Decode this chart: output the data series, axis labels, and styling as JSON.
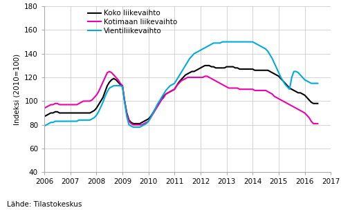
{
  "title": "",
  "ylabel": "Indeksi (2010=100)",
  "source": "Lähde: Tilastokeskus",
  "ylim": [
    40,
    180
  ],
  "yticks": [
    40,
    60,
    80,
    100,
    120,
    140,
    160,
    180
  ],
  "xlim": [
    2006.0,
    2017.0
  ],
  "xticks": [
    2006,
    2007,
    2008,
    2009,
    2010,
    2011,
    2012,
    2013,
    2014,
    2015,
    2016,
    2017
  ],
  "line_koko": {
    "label": "Koko liikevaihto",
    "color": "#000000",
    "linewidth": 1.5,
    "t": [
      2006.0,
      2006.083,
      2006.167,
      2006.25,
      2006.333,
      2006.417,
      2006.5,
      2006.583,
      2006.667,
      2006.75,
      2006.833,
      2006.917,
      2007.0,
      2007.083,
      2007.167,
      2007.25,
      2007.333,
      2007.417,
      2007.5,
      2007.583,
      2007.667,
      2007.75,
      2007.833,
      2007.917,
      2008.0,
      2008.083,
      2008.167,
      2008.25,
      2008.333,
      2008.417,
      2008.5,
      2008.583,
      2008.667,
      2008.75,
      2008.833,
      2008.917,
      2009.0,
      2009.083,
      2009.167,
      2009.25,
      2009.333,
      2009.417,
      2009.5,
      2009.583,
      2009.667,
      2009.75,
      2009.833,
      2009.917,
      2010.0,
      2010.083,
      2010.167,
      2010.25,
      2010.333,
      2010.417,
      2010.5,
      2010.583,
      2010.667,
      2010.75,
      2010.833,
      2010.917,
      2011.0,
      2011.083,
      2011.167,
      2011.25,
      2011.333,
      2011.417,
      2011.5,
      2011.583,
      2011.667,
      2011.75,
      2011.833,
      2011.917,
      2012.0,
      2012.083,
      2012.167,
      2012.25,
      2012.333,
      2012.417,
      2012.5,
      2012.583,
      2012.667,
      2012.75,
      2012.833,
      2012.917,
      2013.0,
      2013.083,
      2013.167,
      2013.25,
      2013.333,
      2013.417,
      2013.5,
      2013.583,
      2013.667,
      2013.75,
      2013.833,
      2013.917,
      2014.0,
      2014.083,
      2014.167,
      2014.25,
      2014.333,
      2014.417,
      2014.5,
      2014.583,
      2014.667,
      2014.75,
      2014.833,
      2014.917,
      2015.0,
      2015.083,
      2015.167,
      2015.25,
      2015.333,
      2015.417,
      2015.5,
      2015.583,
      2015.667,
      2015.75,
      2015.833,
      2015.917,
      2016.0,
      2016.083,
      2016.167,
      2016.25,
      2016.333,
      2016.417,
      2016.5
    ],
    "v": [
      87,
      88,
      89,
      90,
      90,
      91,
      91,
      90,
      90,
      90,
      90,
      90,
      90,
      90,
      90,
      90,
      90,
      90,
      90,
      90,
      90,
      90,
      91,
      92,
      94,
      97,
      100,
      103,
      108,
      113,
      116,
      118,
      119,
      118,
      116,
      114,
      113,
      100,
      90,
      84,
      82,
      81,
      81,
      81,
      81,
      82,
      83,
      84,
      85,
      87,
      90,
      93,
      96,
      99,
      102,
      104,
      106,
      107,
      108,
      109,
      110,
      113,
      116,
      118,
      120,
      122,
      123,
      124,
      125,
      125,
      126,
      127,
      128,
      129,
      130,
      130,
      130,
      129,
      129,
      128,
      128,
      128,
      128,
      128,
      129,
      129,
      129,
      129,
      128,
      128,
      127,
      127,
      127,
      127,
      127,
      127,
      127,
      126,
      126,
      126,
      126,
      126,
      126,
      126,
      125,
      124,
      123,
      122,
      121,
      119,
      117,
      115,
      113,
      111,
      110,
      109,
      108,
      107,
      107,
      106,
      105,
      103,
      101,
      99,
      98,
      98,
      98
    ]
  },
  "line_kotimaa": {
    "label": "Kotimaan liikevaihto",
    "color": "#ee00aa",
    "linewidth": 1.5,
    "t": [
      2006.0,
      2006.083,
      2006.167,
      2006.25,
      2006.333,
      2006.417,
      2006.5,
      2006.583,
      2006.667,
      2006.75,
      2006.833,
      2006.917,
      2007.0,
      2007.083,
      2007.167,
      2007.25,
      2007.333,
      2007.417,
      2007.5,
      2007.583,
      2007.667,
      2007.75,
      2007.833,
      2007.917,
      2008.0,
      2008.083,
      2008.167,
      2008.25,
      2008.333,
      2008.417,
      2008.5,
      2008.583,
      2008.667,
      2008.75,
      2008.833,
      2008.917,
      2009.0,
      2009.083,
      2009.167,
      2009.25,
      2009.333,
      2009.417,
      2009.5,
      2009.583,
      2009.667,
      2009.75,
      2009.833,
      2009.917,
      2010.0,
      2010.083,
      2010.167,
      2010.25,
      2010.333,
      2010.417,
      2010.5,
      2010.583,
      2010.667,
      2010.75,
      2010.833,
      2010.917,
      2011.0,
      2011.083,
      2011.167,
      2011.25,
      2011.333,
      2011.417,
      2011.5,
      2011.583,
      2011.667,
      2011.75,
      2011.833,
      2011.917,
      2012.0,
      2012.083,
      2012.167,
      2012.25,
      2012.333,
      2012.417,
      2012.5,
      2012.583,
      2012.667,
      2012.75,
      2012.833,
      2012.917,
      2013.0,
      2013.083,
      2013.167,
      2013.25,
      2013.333,
      2013.417,
      2013.5,
      2013.583,
      2013.667,
      2013.75,
      2013.833,
      2013.917,
      2014.0,
      2014.083,
      2014.167,
      2014.25,
      2014.333,
      2014.417,
      2014.5,
      2014.583,
      2014.667,
      2014.75,
      2014.833,
      2014.917,
      2015.0,
      2015.083,
      2015.167,
      2015.25,
      2015.333,
      2015.417,
      2015.5,
      2015.583,
      2015.667,
      2015.75,
      2015.833,
      2015.917,
      2016.0,
      2016.083,
      2016.167,
      2016.25,
      2016.333,
      2016.417,
      2016.5
    ],
    "v": [
      94,
      95,
      96,
      97,
      97,
      98,
      98,
      97,
      97,
      97,
      97,
      97,
      97,
      97,
      97,
      97,
      98,
      99,
      100,
      100,
      100,
      100,
      101,
      103,
      105,
      108,
      112,
      116,
      120,
      124,
      125,
      124,
      122,
      120,
      118,
      115,
      113,
      100,
      89,
      83,
      81,
      80,
      80,
      80,
      80,
      80,
      81,
      82,
      83,
      86,
      89,
      92,
      95,
      98,
      101,
      103,
      106,
      107,
      108,
      109,
      110,
      113,
      115,
      117,
      118,
      119,
      120,
      120,
      120,
      120,
      120,
      120,
      120,
      120,
      121,
      121,
      120,
      119,
      118,
      117,
      116,
      115,
      114,
      113,
      112,
      111,
      111,
      111,
      111,
      111,
      110,
      110,
      110,
      110,
      110,
      110,
      110,
      109,
      109,
      109,
      109,
      109,
      109,
      108,
      107,
      106,
      104,
      103,
      102,
      101,
      100,
      99,
      98,
      97,
      96,
      95,
      94,
      93,
      92,
      91,
      90,
      88,
      86,
      83,
      81,
      81,
      81
    ]
  },
  "line_vienti": {
    "label": "Vientiliikevaihto",
    "color": "#00aadd",
    "linewidth": 1.5,
    "t": [
      2006.0,
      2006.083,
      2006.167,
      2006.25,
      2006.333,
      2006.417,
      2006.5,
      2006.583,
      2006.667,
      2006.75,
      2006.833,
      2006.917,
      2007.0,
      2007.083,
      2007.167,
      2007.25,
      2007.333,
      2007.417,
      2007.5,
      2007.583,
      2007.667,
      2007.75,
      2007.833,
      2007.917,
      2008.0,
      2008.083,
      2008.167,
      2008.25,
      2008.333,
      2008.417,
      2008.5,
      2008.583,
      2008.667,
      2008.75,
      2008.833,
      2008.917,
      2009.0,
      2009.083,
      2009.167,
      2009.25,
      2009.333,
      2009.417,
      2009.5,
      2009.583,
      2009.667,
      2009.75,
      2009.833,
      2009.917,
      2010.0,
      2010.083,
      2010.167,
      2010.25,
      2010.333,
      2010.417,
      2010.5,
      2010.583,
      2010.667,
      2010.75,
      2010.833,
      2010.917,
      2011.0,
      2011.083,
      2011.167,
      2011.25,
      2011.333,
      2011.417,
      2011.5,
      2011.583,
      2011.667,
      2011.75,
      2011.833,
      2011.917,
      2012.0,
      2012.083,
      2012.167,
      2012.25,
      2012.333,
      2012.417,
      2012.5,
      2012.583,
      2012.667,
      2012.75,
      2012.833,
      2012.917,
      2013.0,
      2013.083,
      2013.167,
      2013.25,
      2013.333,
      2013.417,
      2013.5,
      2013.583,
      2013.667,
      2013.75,
      2013.833,
      2013.917,
      2014.0,
      2014.083,
      2014.167,
      2014.25,
      2014.333,
      2014.417,
      2014.5,
      2014.583,
      2014.667,
      2014.75,
      2014.833,
      2014.917,
      2015.0,
      2015.083,
      2015.167,
      2015.25,
      2015.333,
      2015.417,
      2015.5,
      2015.583,
      2015.667,
      2015.75,
      2015.833,
      2015.917,
      2016.0,
      2016.083,
      2016.167,
      2016.25,
      2016.333,
      2016.417,
      2016.5
    ],
    "v": [
      79,
      80,
      81,
      82,
      82,
      83,
      83,
      83,
      83,
      83,
      83,
      83,
      83,
      83,
      83,
      83,
      84,
      84,
      84,
      84,
      84,
      84,
      85,
      86,
      88,
      91,
      95,
      99,
      104,
      108,
      111,
      112,
      113,
      113,
      113,
      113,
      112,
      99,
      87,
      80,
      79,
      78,
      78,
      78,
      78,
      79,
      80,
      81,
      83,
      86,
      90,
      93,
      97,
      100,
      103,
      106,
      109,
      111,
      113,
      114,
      115,
      118,
      121,
      124,
      127,
      130,
      133,
      136,
      138,
      140,
      141,
      142,
      143,
      144,
      145,
      146,
      147,
      148,
      149,
      149,
      149,
      149,
      150,
      150,
      150,
      150,
      150,
      150,
      150,
      150,
      150,
      150,
      150,
      150,
      150,
      150,
      150,
      149,
      148,
      147,
      146,
      145,
      144,
      142,
      139,
      136,
      132,
      128,
      124,
      120,
      117,
      114,
      112,
      110,
      120,
      125,
      125,
      124,
      122,
      120,
      118,
      117,
      116,
      115,
      115,
      115,
      115
    ]
  },
  "grid_color": "#cccccc",
  "bg_color": "#ffffff",
  "legend_fontsize": 7.5,
  "axis_fontsize": 7.5,
  "source_fontsize": 7.5
}
